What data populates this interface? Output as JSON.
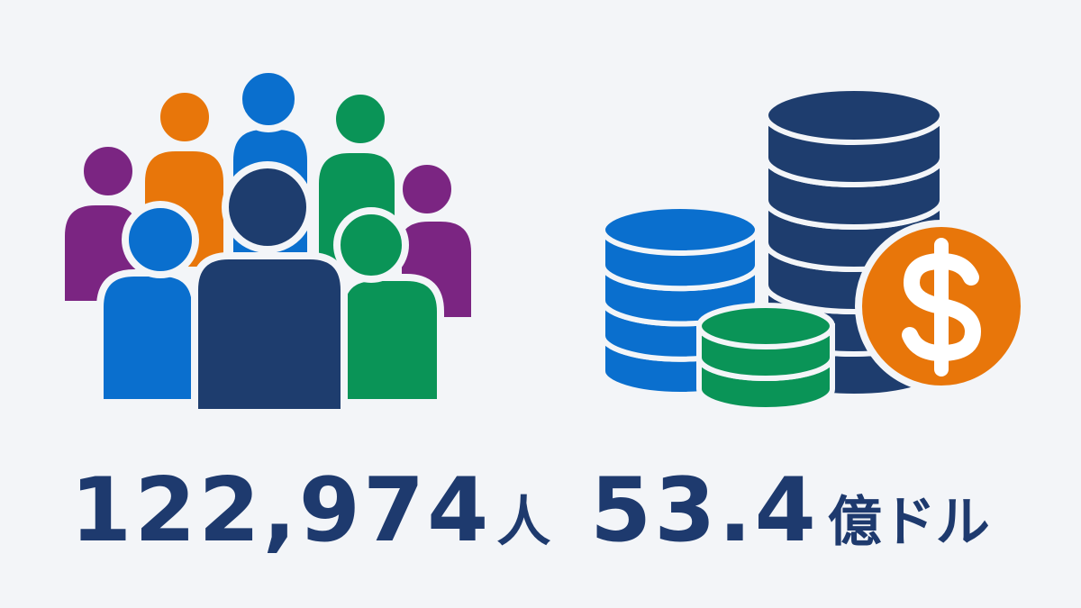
{
  "stats": [
    {
      "number": "122,974",
      "unit": "人"
    },
    {
      "number": "53.4",
      "unit": "億ドル"
    }
  ]
}
